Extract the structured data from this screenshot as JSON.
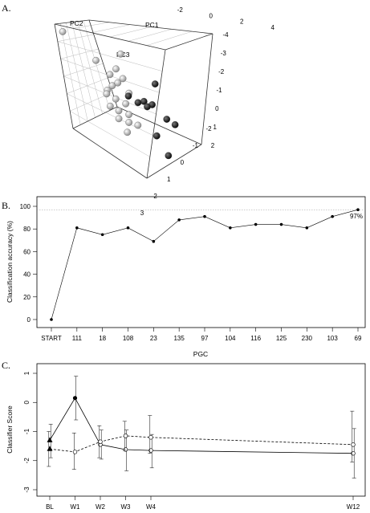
{
  "panels": {
    "a": "A.",
    "b": "B.",
    "c": "C."
  },
  "chart_data": [
    {
      "type": "scatter",
      "subtype": "3d-pca",
      "axis_labels": {
        "pc1": "PC1",
        "pc2": "PC2",
        "pc3": "PC3"
      },
      "pc1_ticks": [
        "-2",
        "0",
        "2",
        "4"
      ],
      "pc2_ticks": [
        "-4",
        "-3",
        "-2",
        "-1",
        "0",
        "1",
        "2"
      ],
      "pc3_ticks": [
        "-2",
        "-1",
        "0",
        "1",
        "2",
        "3"
      ],
      "series": [
        {
          "color": "#888888",
          "points": [
            [
              -2.6,
              -3.9,
              2.6
            ],
            [
              -1.0,
              -3.2,
              1.2
            ],
            [
              1.0,
              -3.3,
              1.8
            ],
            [
              0.2,
              -2.9,
              0.9
            ],
            [
              -0.5,
              -2.5,
              0.6
            ],
            [
              -1.2,
              -2.0,
              -0.3
            ],
            [
              -0.8,
              -1.8,
              0.1
            ],
            [
              -0.3,
              -1.9,
              0.3
            ],
            [
              0.2,
              -1.6,
              -0.2
            ],
            [
              -1.5,
              -1.5,
              -0.4
            ],
            [
              -1.0,
              -1.3,
              -0.6
            ],
            [
              -0.4,
              -1.2,
              -0.8
            ],
            [
              -1.7,
              -0.9,
              -1.0
            ],
            [
              -1.2,
              -0.8,
              -1.2
            ],
            [
              -0.6,
              -0.6,
              -1.3
            ],
            [
              -1.5,
              -0.4,
              -1.6
            ],
            [
              -0.9,
              -0.2,
              -1.7
            ],
            [
              -0.2,
              -0.5,
              -1.9
            ],
            [
              -1.3,
              0.0,
              -2.3
            ],
            [
              0.3,
              -2.3,
              0.5
            ]
          ]
        },
        {
          "color": "#000000",
          "points": [
            [
              2.7,
              -2.7,
              0.3
            ],
            [
              1.6,
              -1.4,
              -0.7
            ],
            [
              0.9,
              -0.9,
              -0.4
            ],
            [
              0.4,
              -0.8,
              -0.5
            ],
            [
              0.9,
              -0.5,
              -0.6
            ],
            [
              2.0,
              -0.3,
              -1.2
            ],
            [
              2.4,
              0.0,
              -1.4
            ],
            [
              0.7,
              0.3,
              -2.2
            ],
            [
              0.8,
              1.3,
              -3.1
            ],
            [
              0.0,
              -1.3,
              -0.3
            ]
          ]
        }
      ]
    },
    {
      "type": "line",
      "xlabel": "PGC",
      "ylabel": "Classification accuracy (%)",
      "categories": [
        "START",
        "111",
        "18",
        "108",
        "23",
        "135",
        "97",
        "104",
        "116",
        "125",
        "230",
        "103",
        "69"
      ],
      "values": [
        0,
        81,
        75,
        81,
        69,
        88,
        91,
        81,
        84,
        84,
        81,
        91,
        97
      ],
      "ylim": [
        0,
        100
      ],
      "yticks": [
        "0",
        "20",
        "40",
        "60",
        "80",
        "100"
      ],
      "reference_line": 97,
      "annotation": "97%"
    },
    {
      "type": "line",
      "ylabel": "Classifier Score",
      "categories": [
        "BL",
        "W1",
        "W2",
        "W3",
        "W4",
        "W12"
      ],
      "x_weeks": [
        0,
        1,
        2,
        3,
        4,
        12
      ],
      "ylim": [
        -3,
        1
      ],
      "yticks": [
        "-3",
        "-2",
        "-1",
        "0",
        "1"
      ],
      "series": [
        {
          "line": "solid",
          "values": [
            -1.3,
            0.15,
            -1.45,
            -1.62,
            -1.65,
            -1.75
          ],
          "lower": [
            -1.9,
            -0.6,
            -1.95,
            -2.35,
            -2.25,
            -2.6
          ],
          "upper": [
            -0.75,
            0.9,
            -0.95,
            -0.95,
            -1.1,
            -0.9
          ]
        },
        {
          "line": "dashed",
          "values": [
            -1.6,
            -1.7,
            -1.35,
            -1.15,
            -1.2,
            -1.45
          ],
          "lower": [
            -2.2,
            -2.3,
            -1.9,
            -1.65,
            -1.75,
            -2.05
          ],
          "upper": [
            -1.0,
            -1.05,
            -0.8,
            -0.65,
            -0.45,
            -0.3
          ]
        }
      ]
    }
  ]
}
